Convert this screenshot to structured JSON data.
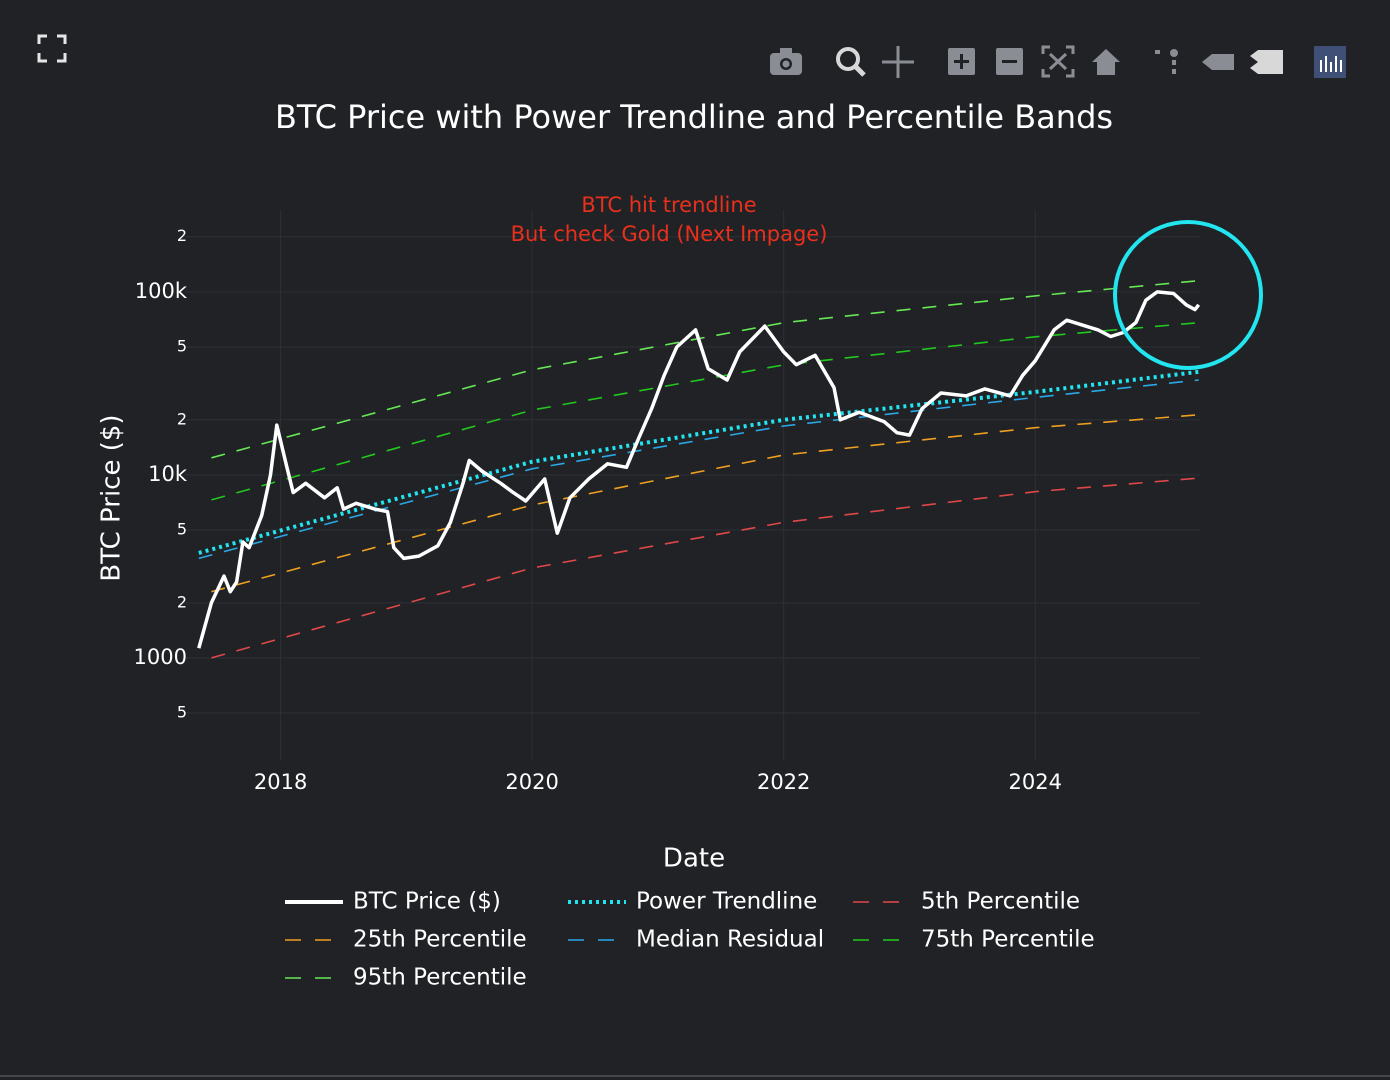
{
  "chart_data": {
    "type": "line",
    "title": "BTC Price with Power Trendline and Percentile Bands",
    "annotation": [
      "BTC hit trendline",
      "But check Gold (Next Impage)"
    ],
    "annotation_color": "#e8301c",
    "x_label": "Date",
    "y_label": "BTC Price ($)",
    "log_y": true,
    "grid": true,
    "xlim": [
      2017.24,
      2025.31
    ],
    "xticks": [
      2018,
      2020,
      2022,
      2024
    ],
    "ylim": [
      277,
      280000
    ],
    "yticks": [
      {
        "value": 500,
        "label": "5"
      },
      1000,
      {
        "value": 2000,
        "label": "2"
      },
      {
        "value": 5000,
        "label": "5"
      },
      {
        "value": 10000,
        "label": "10k"
      },
      {
        "value": 20000,
        "label": "2"
      },
      {
        "value": 50000,
        "label": "5"
      },
      {
        "value": 100000,
        "label": "100k"
      },
      {
        "value": 200000,
        "label": "2"
      }
    ],
    "series": [
      {
        "name": "BTC Price ($)",
        "color": "#ffffff",
        "dash": "solid",
        "x": [
          2017.35,
          2017.45,
          2017.55,
          2017.6,
          2017.65,
          2017.7,
          2017.75,
          2017.85,
          2017.92,
          2017.97,
          2018.05,
          2018.1,
          2018.2,
          2018.35,
          2018.45,
          2018.5,
          2018.6,
          2018.75,
          2018.85,
          2018.9,
          2018.98,
          2019.1,
          2019.25,
          2019.35,
          2019.45,
          2019.5,
          2019.6,
          2019.75,
          2019.85,
          2019.95,
          2020.1,
          2020.2,
          2020.3,
          2020.45,
          2020.6,
          2020.75,
          2020.85,
          2020.95,
          2021.05,
          2021.15,
          2021.3,
          2021.4,
          2021.55,
          2021.65,
          2021.85,
          2022.0,
          2022.1,
          2022.25,
          2022.4,
          2022.45,
          2022.6,
          2022.8,
          2022.9,
          2023.0,
          2023.1,
          2023.25,
          2023.45,
          2023.6,
          2023.8,
          2023.9,
          2024.0,
          2024.15,
          2024.25,
          2024.5,
          2024.6,
          2024.7,
          2024.8,
          2024.88,
          2024.97,
          2025.1,
          2025.2,
          2025.27,
          2025.3
        ],
        "values": [
          1130,
          2000,
          2800,
          2300,
          2600,
          4300,
          4000,
          6000,
          10000,
          18700,
          11000,
          8000,
          9000,
          7500,
          8500,
          6500,
          7000,
          6500,
          6300,
          4000,
          3500,
          3600,
          4100,
          5500,
          9000,
          12000,
          10500,
          9000,
          8000,
          7200,
          9500,
          4800,
          7500,
          9500,
          11500,
          11000,
          16000,
          23000,
          35000,
          50000,
          62000,
          38000,
          33000,
          47000,
          65000,
          47000,
          40000,
          45000,
          30000,
          20000,
          22000,
          19500,
          17000,
          16500,
          23000,
          28000,
          27000,
          29500,
          27000,
          35000,
          42000,
          62000,
          70000,
          62000,
          57000,
          60000,
          68000,
          90000,
          100000,
          98000,
          85000,
          80000,
          85000
        ]
      },
      {
        "name": "Power Trendline",
        "color": "#22e5f0",
        "dash": "dot",
        "x": [
          2017.35,
          2020,
          2022,
          2024,
          2025.3
        ],
        "values": [
          3750,
          11800,
          20000,
          28400,
          36600
        ]
      },
      {
        "name": "5th Percentile",
        "color": "#e04848",
        "dash": "dash",
        "x": [
          2017.45,
          2020,
          2022,
          2024,
          2025.3
        ],
        "values": [
          1000,
          3100,
          5500,
          8100,
          9600
        ]
      },
      {
        "name": "25th Percentile",
        "color": "#f0a020",
        "dash": "dash",
        "x": [
          2017.45,
          2020,
          2022,
          2024,
          2025.3
        ],
        "values": [
          2300,
          6850,
          12850,
          18100,
          21300
        ]
      },
      {
        "name": "Median Residual",
        "color": "#2aa8e8",
        "dash": "dash",
        "x": [
          2017.35,
          2020,
          2022,
          2024,
          2025.3
        ],
        "values": [
          3500,
          10800,
          18500,
          26500,
          33000
        ]
      },
      {
        "name": "75th Percentile",
        "color": "#22c81e",
        "dash": "dash",
        "x": [
          2017.45,
          2020,
          2022,
          2024,
          2025.3
        ],
        "values": [
          7300,
          22600,
          39900,
          56800,
          67800
        ]
      },
      {
        "name": "95th Percentile",
        "color": "#66e855",
        "dash": "dash",
        "x": [
          2017.45,
          2020,
          2022,
          2024,
          2025.3
        ],
        "values": [
          12400,
          37500,
          67800,
          95000,
          115000
        ]
      }
    ]
  }
}
